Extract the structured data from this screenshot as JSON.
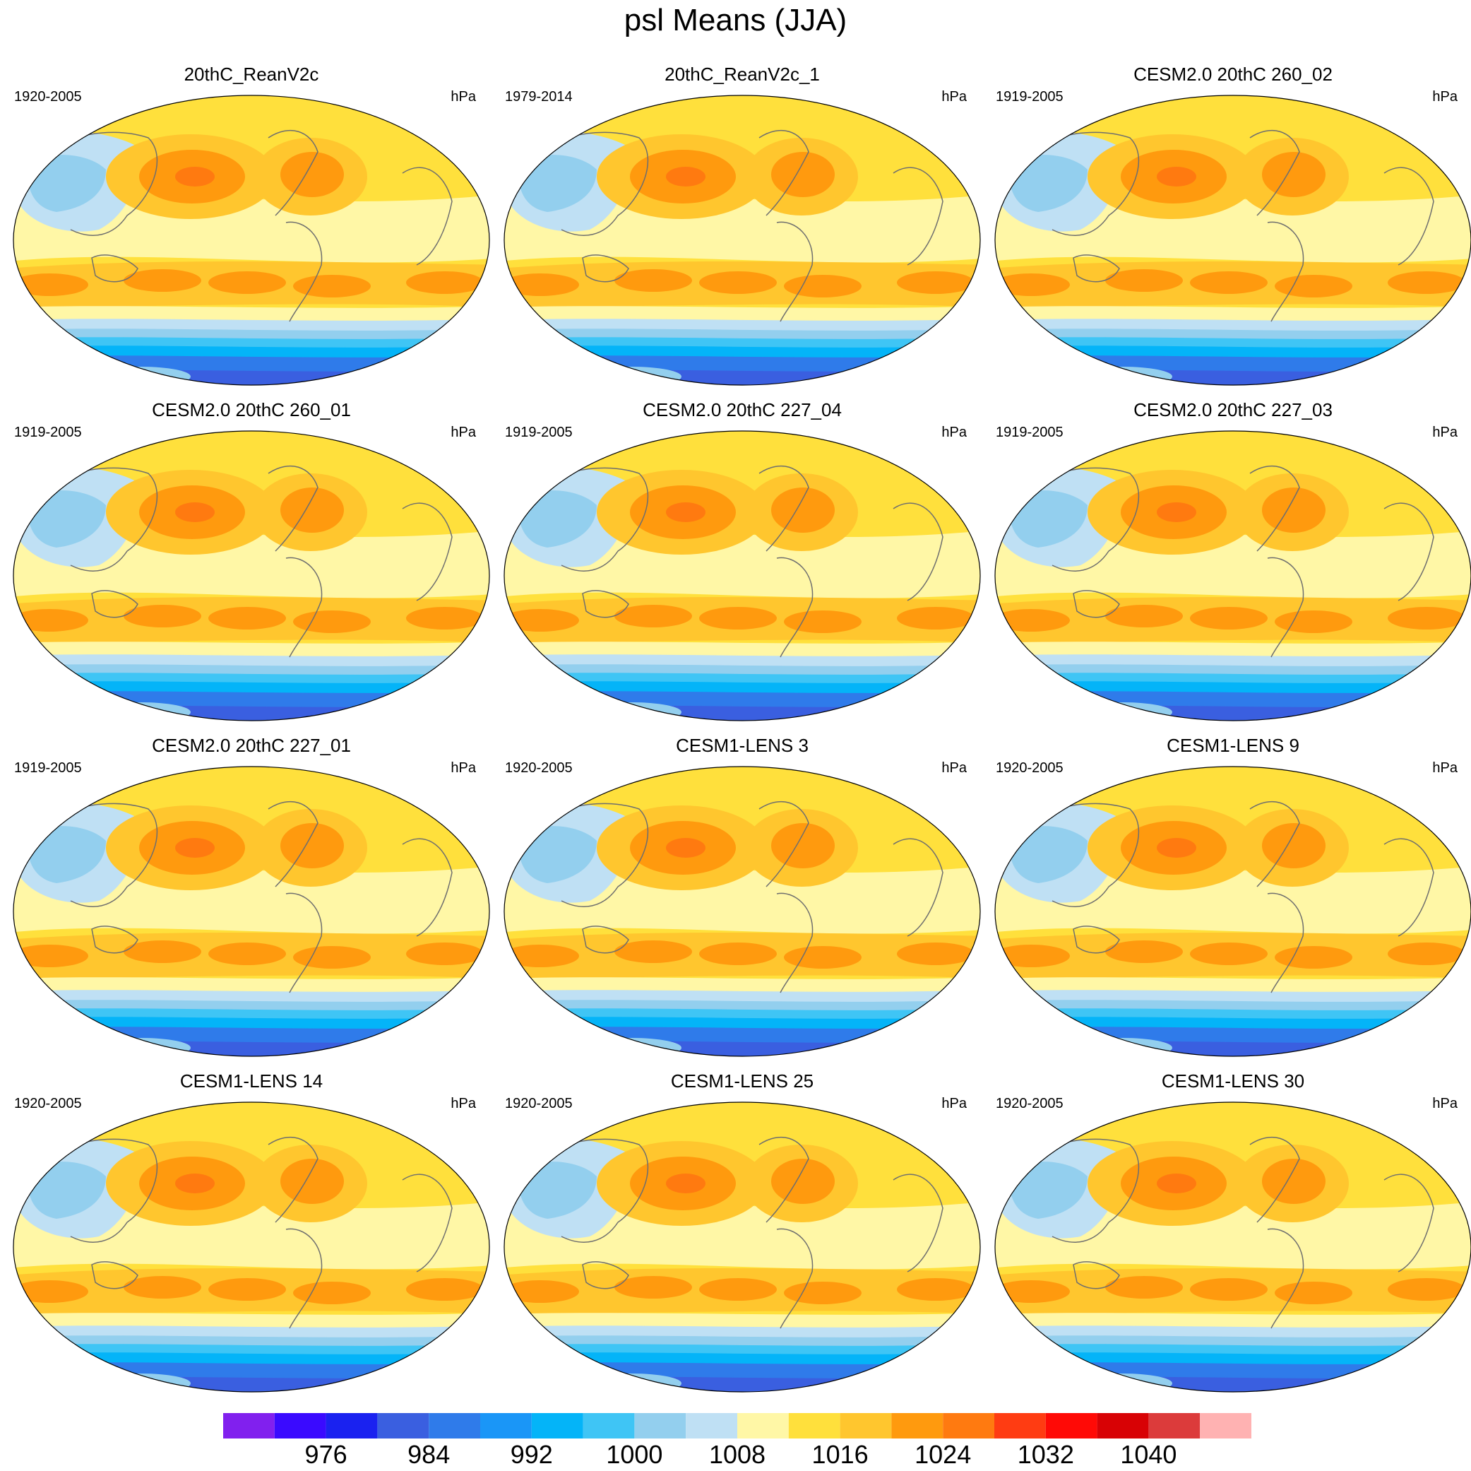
{
  "title": "psl Means (JJA)",
  "colorbar": {
    "colors": [
      "#8120ee",
      "#3a0aff",
      "#1a22f0",
      "#3a5fe0",
      "#2f7bea",
      "#1a96f7",
      "#04b4f8",
      "#3fc5f5",
      "#93cfee",
      "#bfe0f4",
      "#fff7a6",
      "#ffe03c",
      "#ffc62e",
      "#ff9a0e",
      "#ff7a10",
      "#ff3c12",
      "#ff0a06",
      "#d80205",
      "#dc3b3b",
      "#ffb2b2"
    ],
    "tick_labels": [
      "976",
      "984",
      "992",
      "1000",
      "1008",
      "1016",
      "1024",
      "1032",
      "1040"
    ]
  },
  "panels": [
    {
      "title": "20thC_ReanV2c",
      "period": "1920-2005",
      "units": "hPa"
    },
    {
      "title": "20thC_ReanV2c_1",
      "period": "1979-2014",
      "units": "hPa"
    },
    {
      "title": "CESM2.0 20thC 260_02",
      "period": "1919-2005",
      "units": "hPa"
    },
    {
      "title": "CESM2.0 20thC 260_01",
      "period": "1919-2005",
      "units": "hPa"
    },
    {
      "title": "CESM2.0 20thC 227_04",
      "period": "1919-2005",
      "units": "hPa"
    },
    {
      "title": "CESM2.0 20thC 227_03",
      "period": "1919-2005",
      "units": "hPa"
    },
    {
      "title": "CESM2.0 20thC 227_01",
      "period": "1919-2005",
      "units": "hPa"
    },
    {
      "title": "CESM1-LENS 3",
      "period": "1920-2005",
      "units": "hPa"
    },
    {
      "title": "CESM1-LENS 9",
      "period": "1920-2005",
      "units": "hPa"
    },
    {
      "title": "CESM1-LENS 14",
      "period": "1920-2005",
      "units": "hPa"
    },
    {
      "title": "CESM1-LENS 25",
      "period": "1920-2005",
      "units": "hPa"
    },
    {
      "title": "CESM1-LENS 30",
      "period": "1920-2005",
      "units": "hPa"
    }
  ]
}
